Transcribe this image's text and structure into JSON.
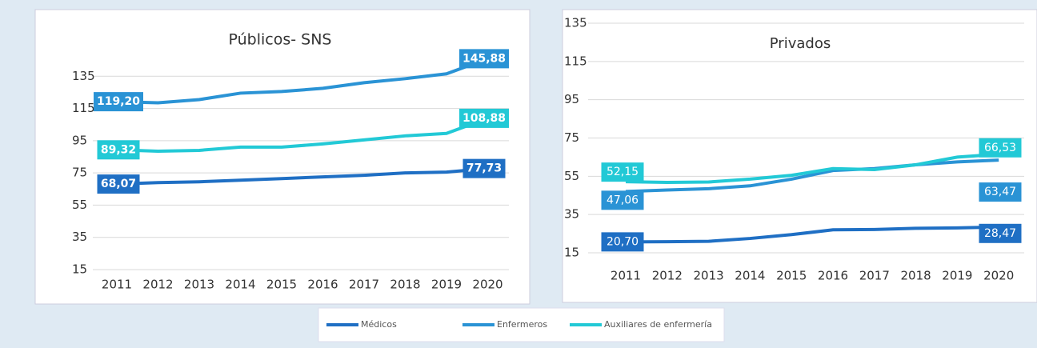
{
  "chart_data": [
    {
      "type": "line",
      "title": "Públicos- SNS",
      "categories": [
        "2011",
        "2012",
        "2013",
        "2014",
        "2015",
        "2016",
        "2017",
        "2018",
        "2019",
        "2020"
      ],
      "ylim": [
        15,
        155
      ],
      "yticks": [
        15,
        35,
        55,
        75,
        95,
        115,
        135
      ],
      "series": [
        {
          "name": "Médicos",
          "color": "#1f6fc4",
          "values": [
            68.07,
            69,
            69.5,
            70.5,
            71.5,
            72.5,
            73.5,
            75,
            75.5,
            77.73
          ],
          "value_labels": [
            "68,07",
            null,
            null,
            null,
            null,
            null,
            null,
            null,
            null,
            "77,73"
          ]
        },
        {
          "name": "Enfermeros",
          "color": "#2a93d5",
          "values": [
            119.2,
            118.5,
            120.5,
            124.5,
            125.5,
            127.5,
            131,
            133.5,
            136.5,
            145.88
          ],
          "value_labels": [
            "119,20",
            null,
            null,
            null,
            null,
            null,
            null,
            null,
            null,
            "145,88"
          ]
        },
        {
          "name": "Auxiliares de enfermería",
          "color": "#22c9d6",
          "values": [
            89.32,
            88.5,
            89,
            91,
            91,
            93,
            95.5,
            98,
            99.5,
            108.88
          ],
          "value_labels": [
            "89,32",
            null,
            null,
            null,
            null,
            null,
            null,
            null,
            null,
            "108,88"
          ]
        }
      ]
    },
    {
      "type": "line",
      "title": "Privados",
      "categories": [
        "2011",
        "2012",
        "2013",
        "2014",
        "2015",
        "2016",
        "2017",
        "2018",
        "2019",
        "2020"
      ],
      "ylim": [
        15,
        135
      ],
      "yticks": [
        15,
        35,
        55,
        75,
        95,
        115,
        135
      ],
      "series": [
        {
          "name": "Médicos",
          "color": "#1f6fc4",
          "values": [
            20.7,
            20.8,
            21,
            22.5,
            24.5,
            27,
            27.2,
            27.8,
            28,
            28.47
          ],
          "value_labels": [
            "20,70",
            null,
            null,
            null,
            null,
            null,
            null,
            null,
            null,
            "28,47"
          ]
        },
        {
          "name": "Enfermeros",
          "color": "#2a93d5",
          "values": [
            47.06,
            47.8,
            48.5,
            50,
            53.5,
            58,
            59,
            61,
            62.5,
            63.47
          ],
          "value_labels": [
            "47,06",
            null,
            null,
            null,
            null,
            null,
            null,
            null,
            null,
            "63,47"
          ]
        },
        {
          "name": "Auxiliares de enfermería",
          "color": "#22c9d6",
          "values": [
            52.15,
            51.8,
            52,
            53.5,
            55.5,
            59,
            58.5,
            61,
            65,
            66.53
          ],
          "value_labels": [
            "52,15",
            null,
            null,
            null,
            null,
            null,
            null,
            null,
            null,
            "66,53"
          ]
        }
      ]
    }
  ]
}
